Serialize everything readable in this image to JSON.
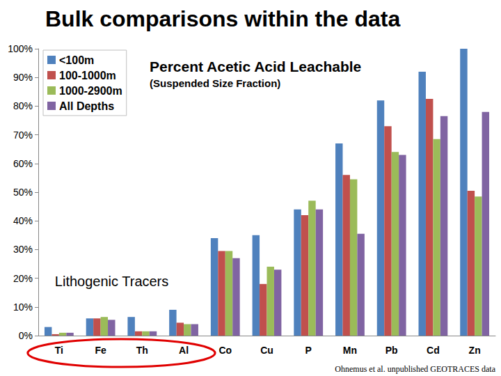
{
  "header": {
    "title": "Bulk comparisons within the data"
  },
  "chart_data": {
    "type": "bar",
    "title": "Percent Acetic Acid Leachable",
    "subtitle": "(Suspended Size Fraction)",
    "annotations": [
      "Lithogenic Tracers",
      "Ohnemus et al. unpublished GEOTRACES data"
    ],
    "categories": [
      "Ti",
      "Fe",
      "Th",
      "Al",
      "Co",
      "Cu",
      "P",
      "Mn",
      "Pb",
      "Cd",
      "Zn"
    ],
    "series": [
      {
        "name": "<100m",
        "color": "#4F81BD",
        "values": [
          3,
          6,
          6.5,
          9,
          34,
          35,
          44,
          67,
          82,
          92,
          100
        ]
      },
      {
        "name": "100-1000m",
        "color": "#C0504D",
        "values": [
          0.5,
          6,
          1.5,
          4.5,
          29.5,
          18,
          42,
          56,
          73,
          82.5,
          50.5
        ]
      },
      {
        "name": "1000-2900m",
        "color": "#9BBB59",
        "values": [
          1,
          6.5,
          1.5,
          4,
          29.5,
          24,
          47,
          54.5,
          64,
          68.5,
          48.5
        ]
      },
      {
        "name": "All Depths",
        "color": "#8064A2",
        "values": [
          1,
          5.5,
          1.5,
          4,
          27,
          23,
          44,
          35.5,
          63,
          76.5,
          78
        ]
      }
    ],
    "ylim": [
      0,
      100
    ],
    "yticks": [
      {
        "value": 0,
        "label": "0%"
      },
      {
        "value": 10,
        "label": "10%"
      },
      {
        "value": 20,
        "label": "20%"
      },
      {
        "value": 30,
        "label": "30%"
      },
      {
        "value": 40,
        "label": "40%"
      },
      {
        "value": 50,
        "label": "50%"
      },
      {
        "value": 60,
        "label": "60%"
      },
      {
        "value": 70,
        "label": "70%"
      },
      {
        "value": 80,
        "label": "80%"
      },
      {
        "value": 90,
        "label": "90%"
      },
      {
        "value": 100,
        "label": "100%"
      }
    ],
    "grid": false,
    "legend": "upper left"
  }
}
